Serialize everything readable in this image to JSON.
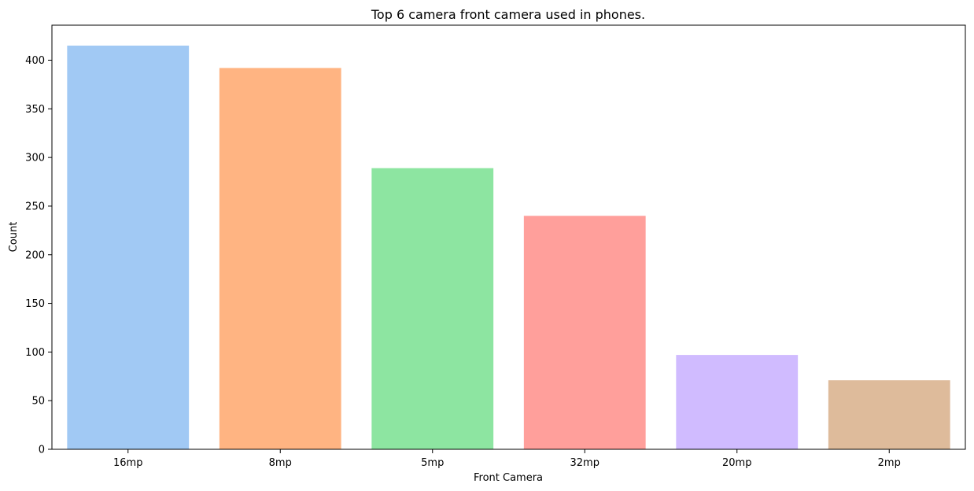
{
  "chart_data": {
    "type": "bar",
    "title": "Top 6 camera front camera used in phones.",
    "xlabel": "Front Camera",
    "ylabel": "Count",
    "categories": [
      "16mp",
      "8mp",
      "5mp",
      "32mp",
      "20mp",
      "2mp"
    ],
    "values": [
      415,
      392,
      289,
      240,
      97,
      71
    ],
    "colors": [
      "#a1c9f4",
      "#ffb482",
      "#8de5a1",
      "#ff9f9b",
      "#d0bbff",
      "#debb9b"
    ],
    "ylim": [
      0,
      436
    ],
    "yticks": [
      0,
      50,
      100,
      150,
      200,
      250,
      300,
      350,
      400
    ],
    "grid": false,
    "legend": "none"
  }
}
